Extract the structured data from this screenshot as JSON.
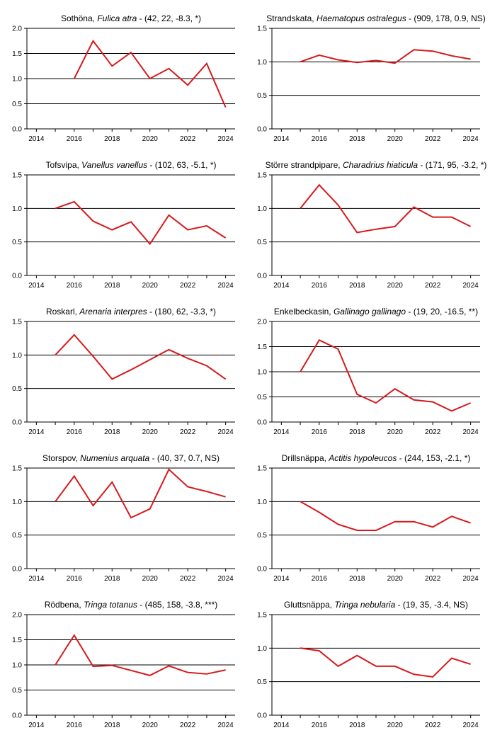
{
  "chart_data": [
    {
      "type": "line",
      "title_name": "Sothöna, ",
      "title_sci": "Fulica atra",
      "title_stats": " - (42, 22, -8.3, *)",
      "x": [
        2015,
        2016,
        2017,
        2018,
        2019,
        2020,
        2021,
        2022,
        2023,
        2024
      ],
      "values": [
        null,
        1.0,
        1.75,
        1.25,
        1.52,
        1.0,
        1.2,
        0.87,
        1.3,
        0.43
      ],
      "xlim": [
        2013.5,
        2024.5
      ],
      "ylim": [
        0,
        2.0
      ],
      "xticks": [
        "2014",
        "2016",
        "2018",
        "2020",
        "2022",
        "2024"
      ],
      "yticks": [
        "0.0",
        "0.5",
        "1.0",
        "1.5",
        "2.0"
      ],
      "gridlines": [
        0.5,
        1.0,
        1.5,
        2.0
      ]
    },
    {
      "type": "line",
      "title_name": "Strandskata, ",
      "title_sci": "Haematopus ostralegus",
      "title_stats": " - (909, 178, 0.9, NS)",
      "x": [
        2015,
        2016,
        2017,
        2018,
        2019,
        2020,
        2021,
        2022,
        2023,
        2024
      ],
      "values": [
        1.0,
        1.1,
        1.03,
        0.99,
        1.02,
        0.98,
        1.18,
        1.16,
        1.09,
        1.04
      ],
      "xlim": [
        2013.5,
        2024.5
      ],
      "ylim": [
        0,
        1.5
      ],
      "xticks": [
        "2014",
        "2016",
        "2018",
        "2020",
        "2022",
        "2024"
      ],
      "yticks": [
        "0.0",
        "0.5",
        "1.0",
        "1.5"
      ],
      "gridlines": [
        0.5,
        1.0,
        1.5
      ]
    },
    {
      "type": "line",
      "title_name": "Tofsvipa, ",
      "title_sci": "Vanellus vanellus",
      "title_stats": " - (102, 63, -5.1, *)",
      "x": [
        2015,
        2016,
        2017,
        2018,
        2019,
        2020,
        2021,
        2022,
        2023,
        2024
      ],
      "values": [
        1.0,
        1.1,
        0.81,
        0.68,
        0.8,
        0.47,
        0.9,
        0.68,
        0.74,
        0.56
      ],
      "xlim": [
        2013.5,
        2024.5
      ],
      "ylim": [
        0,
        1.5
      ],
      "xticks": [
        "2014",
        "2016",
        "2018",
        "2020",
        "2022",
        "2024"
      ],
      "yticks": [
        "0.0",
        "0.5",
        "1.0",
        "1.5"
      ],
      "gridlines": [
        0.5,
        1.0,
        1.5
      ]
    },
    {
      "type": "line",
      "title_name": "Större strandpipare, ",
      "title_sci": "Charadrius hiaticula",
      "title_stats": " - (171, 95, -3.2, *)",
      "x": [
        2015,
        2016,
        2017,
        2018,
        2019,
        2020,
        2021,
        2022,
        2023,
        2024
      ],
      "values": [
        1.0,
        1.35,
        1.05,
        0.64,
        0.69,
        0.73,
        1.02,
        0.87,
        0.87,
        0.73
      ],
      "xlim": [
        2013.5,
        2024.5
      ],
      "ylim": [
        0,
        1.5
      ],
      "xticks": [
        "2014",
        "2016",
        "2018",
        "2020",
        "2022",
        "2024"
      ],
      "yticks": [
        "0.0",
        "0.5",
        "1.0",
        "1.5"
      ],
      "gridlines": [
        0.5,
        1.0,
        1.5
      ]
    },
    {
      "type": "line",
      "title_name": "Roskarl, ",
      "title_sci": "Arenaria interpres",
      "title_stats": " - (180, 62, -3.3, *)",
      "x": [
        2015,
        2016,
        2017,
        2018,
        2019,
        2020,
        2021,
        2022,
        2023,
        2024
      ],
      "values": [
        1.0,
        1.3,
        0.98,
        0.64,
        0.78,
        0.93,
        1.08,
        0.95,
        0.84,
        0.64
      ],
      "xlim": [
        2013.5,
        2024.5
      ],
      "ylim": [
        0,
        1.5
      ],
      "xticks": [
        "2014",
        "2016",
        "2018",
        "2020",
        "2022",
        "2024"
      ],
      "yticks": [
        "0.0",
        "0.5",
        "1.0",
        "1.5"
      ],
      "gridlines": [
        0.5,
        1.0,
        1.5
      ]
    },
    {
      "type": "line",
      "title_name": "Enkelbeckasin, ",
      "title_sci": "Gallinago gallinago",
      "title_stats": " - (19, 20, -16.5, **)",
      "x": [
        2015,
        2016,
        2017,
        2018,
        2019,
        2020,
        2021,
        2022,
        2023,
        2024
      ],
      "values": [
        1.0,
        1.63,
        1.45,
        0.55,
        0.38,
        0.66,
        0.44,
        0.4,
        0.22,
        0.38
      ],
      "xlim": [
        2013.5,
        2024.5
      ],
      "ylim": [
        0,
        2.0
      ],
      "xticks": [
        "2014",
        "2016",
        "2018",
        "2020",
        "2022",
        "2024"
      ],
      "yticks": [
        "0.0",
        "0.5",
        "1.0",
        "1.5",
        "2.0"
      ],
      "gridlines": [
        0.5,
        1.0,
        1.5,
        2.0
      ]
    },
    {
      "type": "line",
      "title_name": "Storspov, ",
      "title_sci": "Numenius arquata",
      "title_stats": " - (40, 37, 0.7, NS)",
      "x": [
        2015,
        2016,
        2017,
        2018,
        2019,
        2020,
        2021,
        2022,
        2023,
        2024
      ],
      "values": [
        1.0,
        1.38,
        0.94,
        1.29,
        0.76,
        0.89,
        1.48,
        1.22,
        1.15,
        1.07
      ],
      "xlim": [
        2013.5,
        2024.5
      ],
      "ylim": [
        0,
        1.5
      ],
      "xticks": [
        "2014",
        "2016",
        "2018",
        "2020",
        "2022",
        "2024"
      ],
      "yticks": [
        "0.0",
        "0.5",
        "1.0",
        "1.5"
      ],
      "gridlines": [
        0.5,
        1.0,
        1.5
      ]
    },
    {
      "type": "line",
      "title_name": "Drillsnäppa, ",
      "title_sci": "Actitis hypoleucos",
      "title_stats": " - (244, 153, -2.1, *)",
      "x": [
        2015,
        2016,
        2017,
        2018,
        2019,
        2020,
        2021,
        2022,
        2023,
        2024
      ],
      "values": [
        1.0,
        0.84,
        0.66,
        0.57,
        0.57,
        0.7,
        0.7,
        0.62,
        0.78,
        0.68
      ],
      "xlim": [
        2013.5,
        2024.5
      ],
      "ylim": [
        0,
        1.5
      ],
      "xticks": [
        "2014",
        "2016",
        "2018",
        "2020",
        "2022",
        "2024"
      ],
      "yticks": [
        "0.0",
        "0.5",
        "1.0",
        "1.5"
      ],
      "gridlines": [
        0.5,
        1.0,
        1.5
      ]
    },
    {
      "type": "line",
      "title_name": "Rödbena, ",
      "title_sci": "Tringa totanus",
      "title_stats": " - (485, 158, -3.8, ***)",
      "x": [
        2015,
        2016,
        2017,
        2018,
        2019,
        2020,
        2021,
        2022,
        2023,
        2024
      ],
      "values": [
        1.0,
        1.59,
        0.97,
        0.99,
        0.89,
        0.79,
        0.98,
        0.85,
        0.82,
        0.9
      ],
      "xlim": [
        2013.5,
        2024.5
      ],
      "ylim": [
        0,
        2.0
      ],
      "xticks": [
        "2014",
        "2016",
        "2018",
        "2020",
        "2022",
        "2024"
      ],
      "yticks": [
        "0.0",
        "0.5",
        "1.0",
        "1.5",
        "2.0"
      ],
      "gridlines": [
        0.5,
        1.0,
        1.5,
        2.0
      ]
    },
    {
      "type": "line",
      "title_name": "Gluttsnäppa, ",
      "title_sci": "Tringa nebularia",
      "title_stats": " - (19, 35, -3.4, NS)",
      "x": [
        2015,
        2016,
        2017,
        2018,
        2019,
        2020,
        2021,
        2022,
        2023,
        2024
      ],
      "values": [
        1.0,
        0.96,
        0.73,
        0.89,
        0.73,
        0.73,
        0.61,
        0.57,
        0.85,
        0.76
      ],
      "xlim": [
        2013.5,
        2024.5
      ],
      "ylim": [
        0,
        1.5
      ],
      "xticks": [
        "2014",
        "2016",
        "2018",
        "2020",
        "2022",
        "2024"
      ],
      "yticks": [
        "0.0",
        "0.5",
        "1.0",
        "1.5"
      ],
      "gridlines": [
        0.5,
        1.0,
        1.5
      ]
    }
  ],
  "colors": {
    "line": "#d7191c",
    "axis": "#000000",
    "grid": "#000000"
  }
}
